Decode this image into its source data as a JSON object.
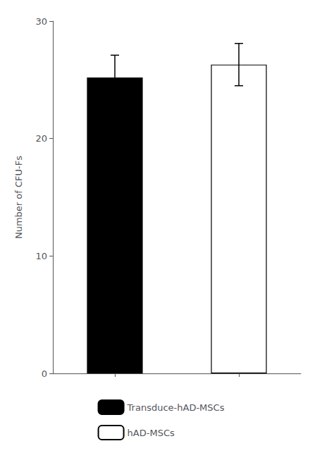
{
  "chart_data": {
    "type": "bar",
    "categories": [
      null,
      null
    ],
    "series": [
      {
        "name": "Transduce-hAD-MSCs",
        "color": "#000000",
        "values": [
          25.2,
          null
        ],
        "errors": [
          1.9,
          null
        ]
      },
      {
        "name": "hAD-MSCs",
        "color": "#ffffff",
        "values": [
          null,
          26.3
        ],
        "errors": [
          null,
          1.8
        ]
      }
    ],
    "ylabel": "Number of CFU-Fs",
    "ylim": [
      0,
      30
    ],
    "yticks": [
      0,
      10,
      20,
      30
    ],
    "grid": false,
    "legend": "bottom"
  }
}
